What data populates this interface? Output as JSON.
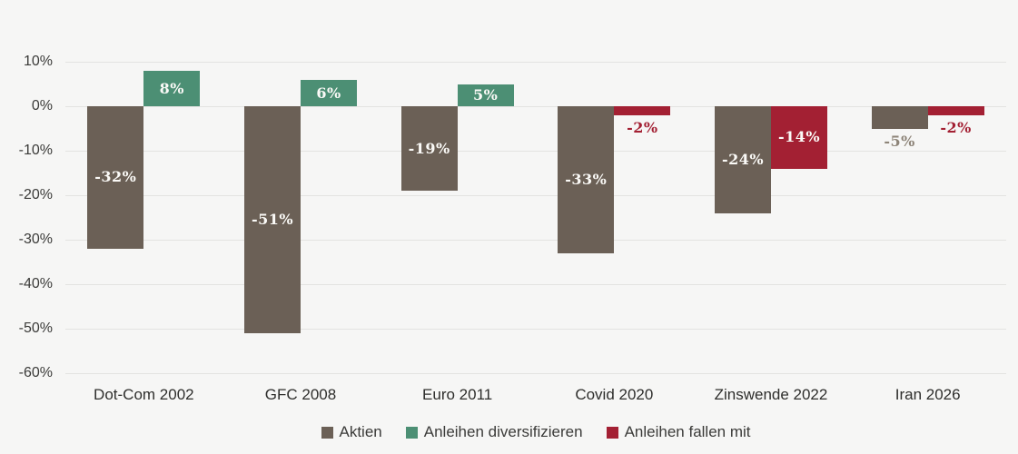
{
  "chart_data": {
    "type": "bar",
    "title": "",
    "categories": [
      "Dot-Com 2002",
      "GFC 2008",
      "Euro 2011",
      "Covid 2020",
      "Zinswende 2022",
      "Iran 2026"
    ],
    "series": [
      {
        "name": "Aktien",
        "values": [
          -32,
          -51,
          -19,
          -33,
          -24,
          -5
        ],
        "labels": [
          "-32%",
          "-51%",
          "-19%",
          "-33%",
          "-24%",
          "-5%"
        ],
        "colors": [
          "brown",
          "brown",
          "brown",
          "brown",
          "brown",
          "brown"
        ],
        "label_pos": [
          "inside",
          "inside",
          "inside",
          "inside",
          "inside",
          "below"
        ],
        "label_color": [
          "white",
          "white",
          "white",
          "white",
          "white",
          "muted"
        ]
      },
      {
        "name": "Anleihen",
        "values": [
          8,
          6,
          5,
          -2,
          -14,
          -2
        ],
        "labels": [
          "8%",
          "6%",
          "5%",
          "-2%",
          "-14%",
          "-2%"
        ],
        "colors": [
          "green",
          "green",
          "green",
          "red",
          "red",
          "red"
        ],
        "label_pos": [
          "inside",
          "inside",
          "inside",
          "below",
          "inside",
          "below"
        ],
        "label_color": [
          "white",
          "white",
          "white",
          "red",
          "white",
          "red"
        ]
      }
    ],
    "y_axis": {
      "min": -60,
      "max": 10,
      "ticks": [
        {
          "label": "10%",
          "value": 10
        },
        {
          "label": "0%",
          "value": 0
        },
        {
          "label": "-10%",
          "value": -10
        },
        {
          "label": "-20%",
          "value": -20
        },
        {
          "label": "-30%",
          "value": -30
        },
        {
          "label": "-40%",
          "value": -40
        },
        {
          "label": "-50%",
          "value": -50
        },
        {
          "label": "-60%",
          "value": -60
        }
      ]
    },
    "grid": "horizontal",
    "legend_position": "bottom",
    "legend": [
      {
        "label": "Aktien",
        "color": "brown"
      },
      {
        "label": "Anleihen diversifizieren",
        "color": "green"
      },
      {
        "label": "Anleihen fallen mit",
        "color": "red"
      }
    ],
    "palette": {
      "brown": "#6B6056",
      "green": "#4C8F74",
      "red": "#A32033",
      "muted": "#8D8478",
      "white": "#FBFAF7",
      "background": "#F6F6F5",
      "gridline": "#E3E3E1",
      "axis_text": "#3B3B39"
    }
  }
}
